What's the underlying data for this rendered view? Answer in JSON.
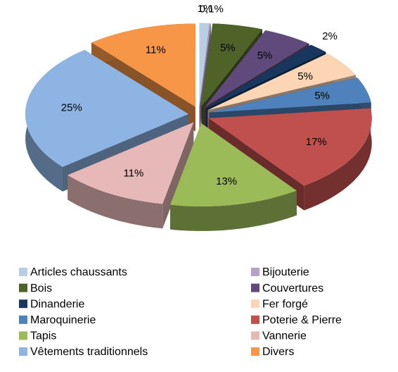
{
  "chart_data": {
    "type": "pie",
    "categories": [
      "Articles chaussants",
      "Bijouterie",
      "Bois",
      "Couvertures",
      "Dinanderie",
      "Fer forgé",
      "Maroquinerie",
      "Poterie & Pierre",
      "Tapis",
      "Vannerie",
      "Vêtements traditionnels",
      "Divers"
    ],
    "values": [
      1,
      0.1,
      5,
      5,
      2,
      5,
      5,
      17,
      13,
      11,
      25,
      11
    ],
    "value_labels": [
      "1%",
      "0,1%",
      "5%",
      "5%",
      "2%",
      "5%",
      "5%",
      "17%",
      "13%",
      "11%",
      "25%",
      "11%"
    ],
    "colors": [
      "#b9cde5",
      "#b3a2c7",
      "#4f6228",
      "#604a7b",
      "#17375e",
      "#fcd5b5",
      "#4f81bd",
      "#c0504d",
      "#9bbb59",
      "#e6b9b8",
      "#8eb4e3",
      "#f79646"
    ],
    "legend": "bottom"
  }
}
